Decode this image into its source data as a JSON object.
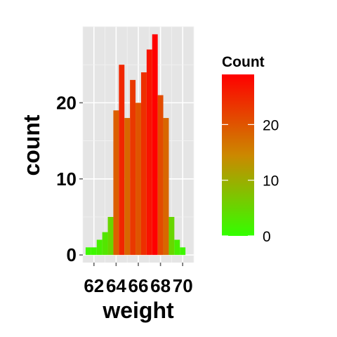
{
  "chart_data": {
    "type": "bar",
    "subtype": "histogram",
    "x_bin_width": 0.5,
    "x": [
      61.5,
      62.0,
      62.5,
      63.0,
      63.5,
      64.0,
      64.5,
      65.0,
      65.5,
      66.0,
      66.5,
      67.0,
      67.5,
      68.0,
      68.5,
      69.0,
      69.5,
      70.0
    ],
    "values": [
      1,
      1,
      2,
      3,
      5,
      19,
      25,
      18,
      23,
      20,
      24,
      27,
      29,
      21,
      18,
      5,
      2,
      1
    ],
    "xlabel": "weight",
    "ylabel": "count",
    "xlim": [
      61,
      71
    ],
    "ylim": [
      -1,
      30
    ],
    "x_ticks": [
      62,
      64,
      66,
      68,
      70
    ],
    "x_tick_labels": [
      "62",
      "64",
      "66",
      "68",
      "70"
    ],
    "y_ticks": [
      0,
      10,
      20
    ],
    "y_tick_labels": [
      "0",
      "10",
      "20"
    ],
    "grid": true,
    "panel_background": "#e5e5e5",
    "fill_gradient": {
      "low": "#33ff00",
      "mid": "#cc8800",
      "high": "#ff0000"
    },
    "legend": {
      "title": "Count",
      "position": "right",
      "range": [
        0,
        29
      ],
      "breaks": [
        0,
        10,
        20
      ],
      "break_labels": [
        "0",
        "10",
        "20"
      ]
    }
  }
}
